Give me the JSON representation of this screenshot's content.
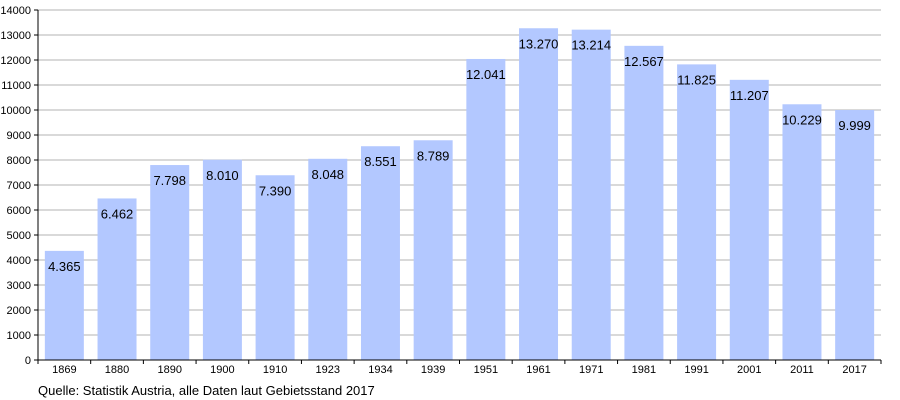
{
  "chart_data": {
    "type": "bar",
    "categories": [
      "1869",
      "1880",
      "1890",
      "1900",
      "1910",
      "1923",
      "1934",
      "1939",
      "1951",
      "1961",
      "1971",
      "1981",
      "1991",
      "2001",
      "2011",
      "2017"
    ],
    "values": [
      4365,
      6462,
      7798,
      8010,
      7390,
      8048,
      8551,
      8789,
      12041,
      13270,
      13214,
      12567,
      11825,
      11207,
      10229,
      9999
    ],
    "value_labels": [
      "4.365",
      "6.462",
      "7.798",
      "8.010",
      "7.390",
      "8.048",
      "8.551",
      "8.789",
      "12.041",
      "13.270",
      "13.214",
      "12.567",
      "11.825",
      "11.207",
      "10.229",
      "9.999"
    ],
    "ylim": [
      0,
      14000
    ],
    "y_ticks": [
      0,
      1000,
      2000,
      3000,
      4000,
      5000,
      6000,
      7000,
      8000,
      9000,
      10000,
      11000,
      12000,
      13000,
      14000
    ],
    "grid": true,
    "bar_color": "#b3c8ff",
    "grid_color": "#b3b3b3",
    "title": "",
    "xlabel": "",
    "ylabel": ""
  },
  "source_note": "Quelle: Statistik Austria, alle Daten laut Gebietsstand 2017"
}
